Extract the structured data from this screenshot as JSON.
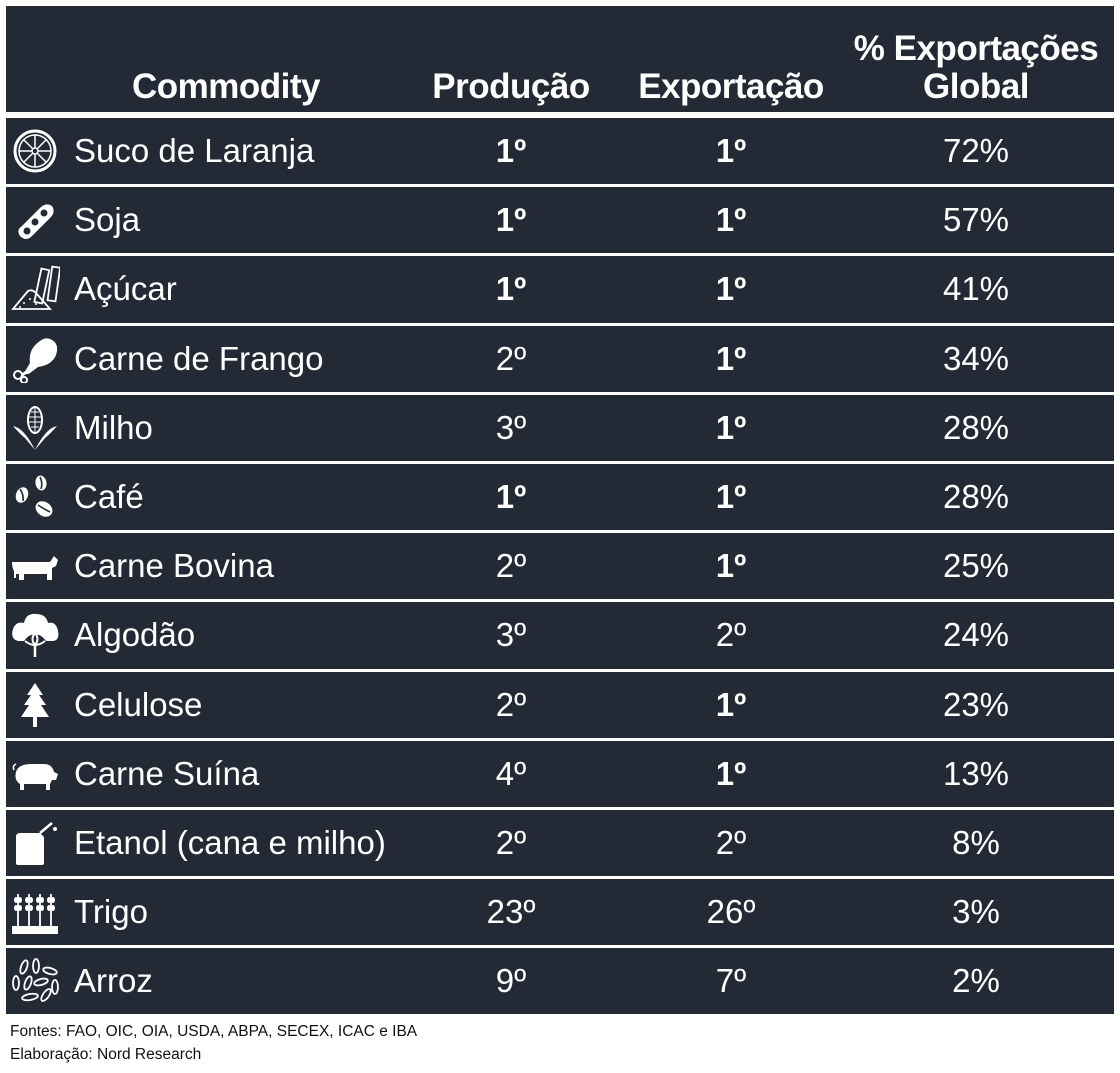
{
  "colors": {
    "background": "#232a35",
    "text": "#ffffff",
    "highlight_gold": "#f5b819",
    "page": "#ffffff"
  },
  "header": {
    "commodity": "Commodity",
    "producao": "Produção",
    "exportacao": "Exportação",
    "global_line1": "% Exportações",
    "global_line2": "Global"
  },
  "rows": [
    {
      "icon": "orange-slice-icon",
      "name": "Suco de Laranja",
      "producao": "1º",
      "exportacao": "1º",
      "pct": "72%"
    },
    {
      "icon": "soybean-icon",
      "name": "Soja",
      "producao": "1º",
      "exportacao": "1º",
      "pct": "57%"
    },
    {
      "icon": "sugar-cane-icon",
      "name": "Açúcar",
      "producao": "1º",
      "exportacao": "1º",
      "pct": "41%"
    },
    {
      "icon": "chicken-leg-icon",
      "name": "Carne de Frango",
      "producao": "2º",
      "exportacao": "1º",
      "pct": "34%"
    },
    {
      "icon": "corn-icon",
      "name": "Milho",
      "producao": "3º",
      "exportacao": "1º",
      "pct": "28%"
    },
    {
      "icon": "coffee-beans-icon",
      "name": "Café",
      "producao": "1º",
      "exportacao": "1º",
      "pct": "28%"
    },
    {
      "icon": "cow-icon",
      "name": "Carne Bovina",
      "producao": "2º",
      "exportacao": "1º",
      "pct": "25%"
    },
    {
      "icon": "cotton-icon",
      "name": "Algodão",
      "producao": "3º",
      "exportacao": "2º",
      "pct": "24%"
    },
    {
      "icon": "pine-tree-icon",
      "name": "Celulose",
      "producao": "2º",
      "exportacao": "1º",
      "pct": "23%"
    },
    {
      "icon": "pig-icon",
      "name": "Carne Suína",
      "producao": "4º",
      "exportacao": "1º",
      "pct": "13%"
    },
    {
      "icon": "fuel-can-icon",
      "name": "Etanol (cana e milho)",
      "producao": "2º",
      "exportacao": "2º",
      "pct": "8%"
    },
    {
      "icon": "wheat-icon",
      "name": "Trigo",
      "producao": "23º",
      "exportacao": "26º",
      "pct": "3%"
    },
    {
      "icon": "rice-icon",
      "name": "Arroz",
      "producao": "9º",
      "exportacao": "7º",
      "pct": "2%"
    }
  ],
  "footer": {
    "sources": "Fontes: FAO, OIC, OIA, USDA, ABPA, SECEX, ICAC e IBA",
    "credit": "Elaboração: Nord Research"
  },
  "chart_data": {
    "type": "table",
    "title": "",
    "columns": [
      "Commodity",
      "Produção",
      "Exportação",
      "% Exportações Global"
    ],
    "categories": [
      "Suco de Laranja",
      "Soja",
      "Açúcar",
      "Carne de Frango",
      "Milho",
      "Café",
      "Carne Bovina",
      "Algodão",
      "Celulose",
      "Carne Suína",
      "Etanol (cana e milho)",
      "Trigo",
      "Arroz"
    ],
    "series": [
      {
        "name": "Produção (rank)",
        "values": [
          1,
          1,
          1,
          2,
          3,
          1,
          2,
          3,
          2,
          4,
          2,
          23,
          9
        ]
      },
      {
        "name": "Exportação (rank)",
        "values": [
          1,
          1,
          1,
          1,
          1,
          1,
          1,
          2,
          1,
          1,
          2,
          26,
          7
        ]
      },
      {
        "name": "% Exportações Global",
        "values": [
          72,
          57,
          41,
          34,
          28,
          28,
          25,
          24,
          23,
          13,
          8,
          3,
          2
        ]
      }
    ],
    "annotations": [
      "Rank 1º highlighted in gold"
    ],
    "sources": "Fontes: FAO, OIC, OIA, USDA, ABPA, SECEX, ICAC e IBA",
    "credit": "Elaboração: Nord Research"
  }
}
